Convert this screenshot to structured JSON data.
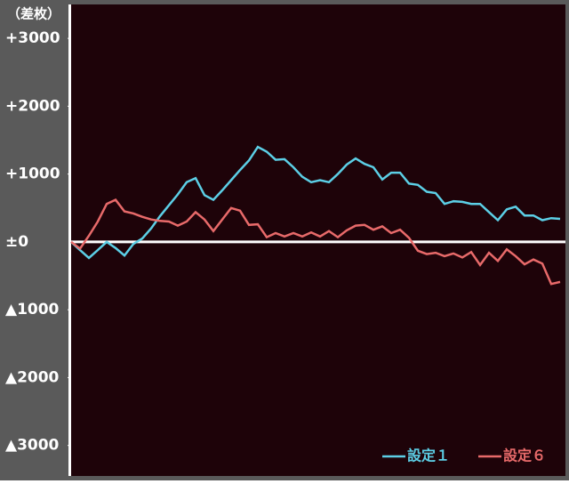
{
  "chart_data": {
    "type": "line",
    "y_unit": "（差枚）",
    "ylim": [
      -3450,
      3500
    ],
    "yticks": [
      {
        "value": 3000,
        "label": "+3000"
      },
      {
        "value": 2000,
        "label": "+2000"
      },
      {
        "value": 1000,
        "label": "+1000"
      },
      {
        "value": 0,
        "label": "±0"
      },
      {
        "value": -1000,
        "label": "▲1000"
      },
      {
        "value": -2000,
        "label": "▲2000"
      },
      {
        "value": -3000,
        "label": "▲3000"
      }
    ],
    "zero_line": true,
    "legend": "bottom-right",
    "series": [
      {
        "name": "設定１",
        "color": "#5ccfe6",
        "values": [
          0,
          -120,
          -236,
          -120,
          0,
          -90,
          -200,
          -30,
          50,
          200,
          380,
          540,
          700,
          880,
          940,
          690,
          620,
          760,
          910,
          1060,
          1200,
          1400,
          1330,
          1210,
          1220,
          1100,
          960,
          880,
          910,
          880,
          1000,
          1140,
          1230,
          1150,
          1100,
          920,
          1020,
          1020,
          860,
          840,
          740,
          720,
          560,
          600,
          590,
          560,
          560,
          440,
          320,
          480,
          520,
          390,
          390,
          320,
          350,
          340
        ]
      },
      {
        "name": "設定６",
        "color": "#e86a6a",
        "values": [
          0,
          -100,
          90,
          300,
          560,
          620,
          450,
          420,
          370,
          330,
          310,
          300,
          240,
          300,
          440,
          330,
          160,
          330,
          500,
          460,
          250,
          260,
          70,
          130,
          80,
          130,
          80,
          140,
          80,
          160,
          70,
          170,
          240,
          250,
          180,
          230,
          130,
          180,
          60,
          -130,
          -180,
          -160,
          -210,
          -170,
          -230,
          -150,
          -340,
          -160,
          -280,
          -110,
          -210,
          -330,
          -260,
          -320,
          -620,
          -590
        ]
      }
    ]
  }
}
